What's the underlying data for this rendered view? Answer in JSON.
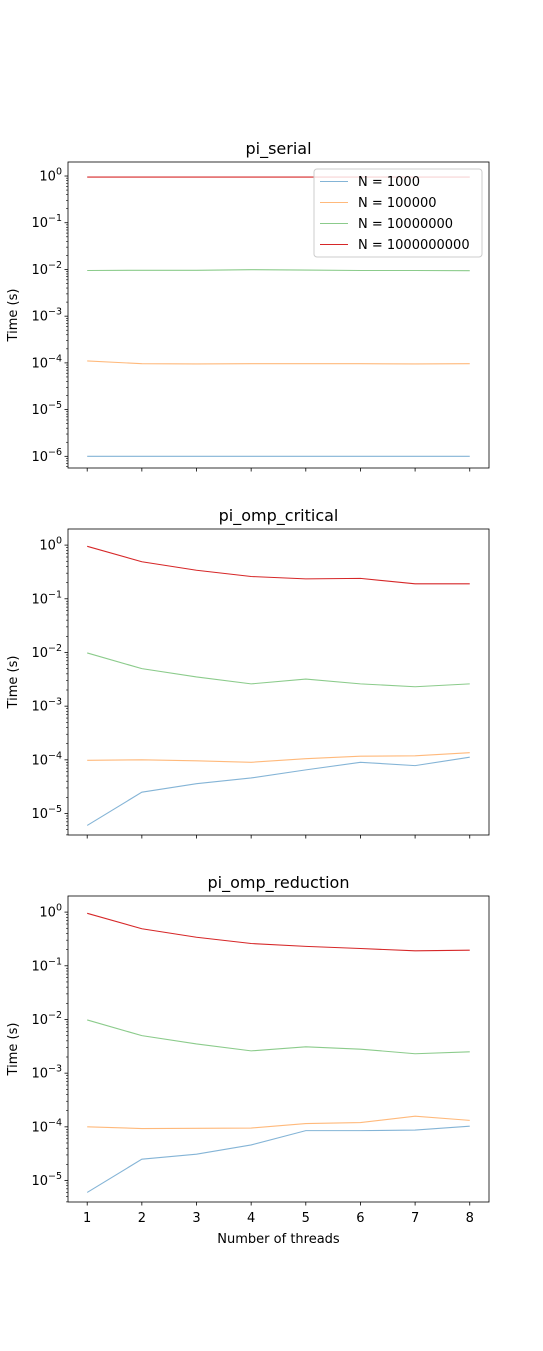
{
  "chart_data": [
    {
      "type": "line",
      "title": "pi_serial",
      "ylabel": "Time (s)",
      "xlabel": "",
      "yscale": "log",
      "ylim_exp": [
        -6.25,
        0.3
      ],
      "x": [
        1,
        2,
        3,
        4,
        5,
        6,
        7,
        8
      ],
      "xticks_labeled": false,
      "legend": "top-right",
      "series": [
        {
          "name": "N = 1000",
          "color": "#1f77b4",
          "values": [
            1e-06,
            1e-06,
            1e-06,
            1e-06,
            1e-06,
            1e-06,
            1e-06,
            1e-06
          ]
        },
        {
          "name": "N = 100000",
          "color": "#ff7f0e",
          "values": [
            0.00011,
            9.6e-05,
            9.5e-05,
            9.6e-05,
            9.6e-05,
            9.6e-05,
            9.5e-05,
            9.6e-05
          ]
        },
        {
          "name": "N = 10000000",
          "color": "#2ca02c",
          "values": [
            0.0095,
            0.0096,
            0.0096,
            0.0099,
            0.0097,
            0.0095,
            0.0095,
            0.0094
          ]
        },
        {
          "name": "N = 1000000000",
          "color": "#d62728",
          "values": [
            0.95,
            0.95,
            0.95,
            0.95,
            0.95,
            0.95,
            0.95,
            0.95
          ]
        }
      ]
    },
    {
      "type": "line",
      "title": "pi_omp_critical",
      "ylabel": "Time (s)",
      "xlabel": "",
      "yscale": "log",
      "ylim_exp": [
        -5.4,
        0.3
      ],
      "x": [
        1,
        2,
        3,
        4,
        5,
        6,
        7,
        8
      ],
      "xticks_labeled": false,
      "series": [
        {
          "name": "N = 1000",
          "color": "#1f77b4",
          "values": [
            6e-06,
            2.5e-05,
            3.6e-05,
            4.6e-05,
            6.5e-05,
            9e-05,
            7.8e-05,
            0.000112
          ]
        },
        {
          "name": "N = 100000",
          "color": "#ff7f0e",
          "values": [
            9.8e-05,
            0.0001,
            9.6e-05,
            9e-05,
            0.000105,
            0.000117,
            0.000119,
            0.000136
          ]
        },
        {
          "name": "N = 10000000",
          "color": "#2ca02c",
          "values": [
            0.0098,
            0.005,
            0.0035,
            0.0026,
            0.0032,
            0.0026,
            0.0023,
            0.0026
          ]
        },
        {
          "name": "N = 1000000000",
          "color": "#d62728",
          "values": [
            0.95,
            0.49,
            0.34,
            0.26,
            0.235,
            0.24,
            0.19,
            0.19
          ]
        }
      ]
    },
    {
      "type": "line",
      "title": "pi_omp_reduction",
      "ylabel": "Time (s)",
      "xlabel": "Number of threads",
      "yscale": "log",
      "ylim_exp": [
        -5.4,
        0.3
      ],
      "x": [
        1,
        2,
        3,
        4,
        5,
        6,
        7,
        8
      ],
      "xticks_labeled": true,
      "series": [
        {
          "name": "N = 1000",
          "color": "#1f77b4",
          "values": [
            6e-06,
            2.5e-05,
            3.1e-05,
            4.6e-05,
            8.5e-05,
            8.5e-05,
            8.7e-05,
            0.000103
          ]
        },
        {
          "name": "N = 100000",
          "color": "#ff7f0e",
          "values": [
            0.0001,
            9.3e-05,
            9.4e-05,
            9.5e-05,
            0.000115,
            0.00012,
            0.000158,
            0.000132
          ]
        },
        {
          "name": "N = 10000000",
          "color": "#2ca02c",
          "values": [
            0.0098,
            0.005,
            0.0035,
            0.0026,
            0.0031,
            0.0028,
            0.0023,
            0.0025
          ]
        },
        {
          "name": "N = 1000000000",
          "color": "#d62728",
          "values": [
            0.95,
            0.49,
            0.34,
            0.26,
            0.23,
            0.21,
            0.19,
            0.195
          ]
        }
      ]
    }
  ]
}
